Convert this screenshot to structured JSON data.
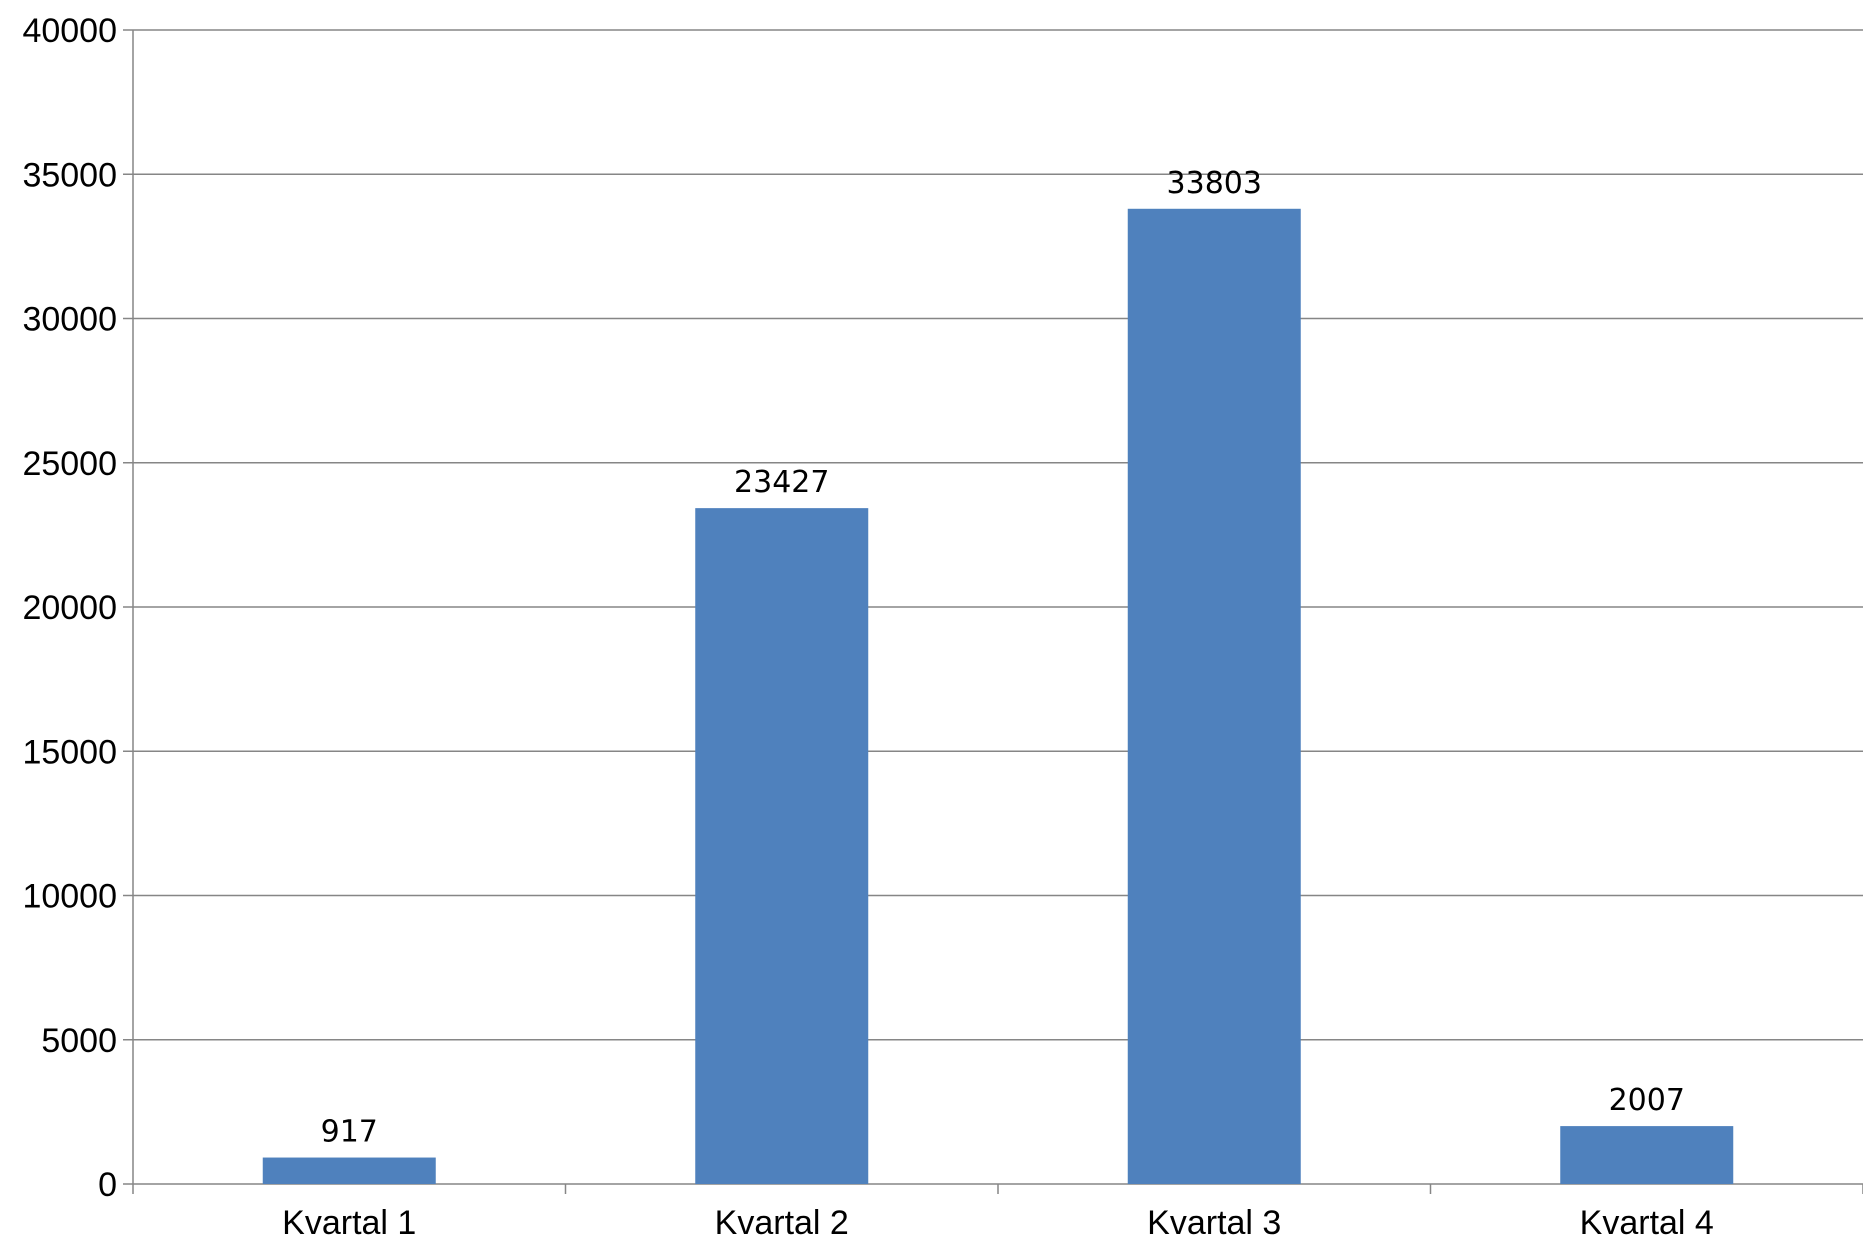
{
  "chart_data": {
    "type": "bar",
    "categories": [
      "Kvartal 1",
      "Kvartal 2",
      "Kvartal 3",
      "Kvartal 4"
    ],
    "values": [
      917,
      23427,
      33803,
      2007
    ],
    "data_labels": [
      "917",
      "23427",
      "33803",
      "2007"
    ],
    "yticks": [
      "0",
      "5000",
      "10000",
      "15000",
      "20000",
      "25000",
      "30000",
      "35000",
      "40000"
    ],
    "ylim": [
      0,
      40000
    ],
    "title": "",
    "xlabel": "",
    "ylabel": "",
    "grid": true,
    "legend": "none",
    "bar_color": "#4F81BD",
    "grid_color": "#868686"
  }
}
